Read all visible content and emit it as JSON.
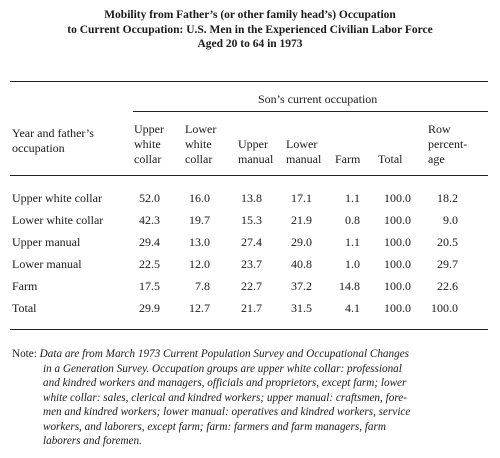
{
  "title": [
    "Mobility from Father’s (or other family head’s) Occupation",
    "to Current Occupation:  U.S. Men in the Experienced Civilian Labor Force",
    "Aged 20 to 64 in 1973"
  ],
  "spanner": "Son’s current occupation",
  "stub_header": "Year and father’s\noccupation",
  "columns": [
    "Upper\nwhite\ncollar",
    "Lower\nwhite\ncollar",
    "Upper\nmanual",
    "Lower\nmanual",
    "Farm",
    "Total",
    "Row\npercent-\nage"
  ],
  "rows": [
    {
      "label": "Upper white collar",
      "values": [
        "52.0",
        "16.0",
        "13.8",
        "17.1",
        "1.1",
        "100.0",
        "18.2"
      ]
    },
    {
      "label": "Lower white collar",
      "values": [
        "42.3",
        "19.7",
        "15.3",
        "21.9",
        "0.8",
        "100.0",
        "9.0"
      ]
    },
    {
      "label": "Upper manual",
      "values": [
        "29.4",
        "13.0",
        "27.4",
        "29.0",
        "1.1",
        "100.0",
        "20.5"
      ]
    },
    {
      "label": "Lower manual",
      "values": [
        "22.5",
        "12.0",
        "23.7",
        "40.8",
        "1.0",
        "100.0",
        "29.7"
      ]
    },
    {
      "label": "Farm",
      "values": [
        "17.5",
        "7.8",
        "22.7",
        "37.2",
        "14.8",
        "100.0",
        "22.6"
      ]
    },
    {
      "label": "Total",
      "values": [
        "29.9",
        "12.7",
        "21.7",
        "31.5",
        "4.1",
        "100.0",
        "100.0"
      ]
    }
  ],
  "note": {
    "lead": "Note:",
    "lines": [
      "Data are from March 1973 Current Population Survey and Occupational Changes",
      "in a Generation Survey. Occupation groups are upper white collar: professional",
      "and kindred workers and managers, officials and proprietors, except farm; lower",
      "white collar: sales, clerical and kindred workers; upper manual: craftsmen, fore-",
      "men and kindred workers; lower manual: operatives and kindred workers, service",
      "workers, and laborers, except farm; farm: farmers and farm managers, farm",
      "laborers and foremen."
    ]
  }
}
